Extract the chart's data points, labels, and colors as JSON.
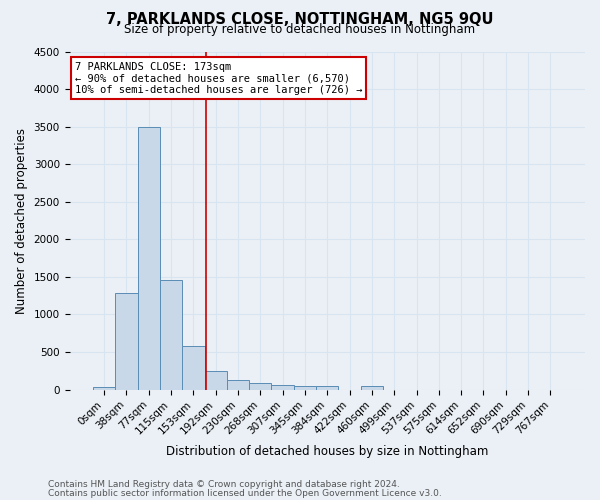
{
  "title": "7, PARKLANDS CLOSE, NOTTINGHAM, NG5 9QU",
  "subtitle": "Size of property relative to detached houses in Nottingham",
  "xlabel": "Distribution of detached houses by size in Nottingham",
  "ylabel": "Number of detached properties",
  "footnote1": "Contains HM Land Registry data © Crown copyright and database right 2024.",
  "footnote2": "Contains public sector information licensed under the Open Government Licence v3.0.",
  "bar_labels": [
    "0sqm",
    "38sqm",
    "77sqm",
    "115sqm",
    "153sqm",
    "192sqm",
    "230sqm",
    "268sqm",
    "307sqm",
    "345sqm",
    "384sqm",
    "422sqm",
    "460sqm",
    "499sqm",
    "537sqm",
    "575sqm",
    "614sqm",
    "652sqm",
    "690sqm",
    "729sqm",
    "767sqm"
  ],
  "bar_values": [
    40,
    1280,
    3500,
    1460,
    580,
    250,
    130,
    90,
    55,
    45,
    45,
    0,
    50,
    0,
    0,
    0,
    0,
    0,
    0,
    0,
    0
  ],
  "bar_color": "#c8d8e8",
  "bar_edge_color": "#5a8db5",
  "annotation_text1": "7 PARKLANDS CLOSE: 173sqm",
  "annotation_text2": "← 90% of detached houses are smaller (6,570)",
  "annotation_text3": "10% of semi-detached houses are larger (726) →",
  "vline_x_index": 4.55,
  "vline_color": "#cc0000",
  "bg_color": "#eaf0f6",
  "ylim": [
    0,
    4500
  ],
  "yticks": [
    0,
    500,
    1000,
    1500,
    2000,
    2500,
    3000,
    3500,
    4000,
    4500
  ],
  "grid_color": "#d8e4ef",
  "title_fontsize": 10.5,
  "subtitle_fontsize": 8.5,
  "ylabel_fontsize": 8.5,
  "xlabel_fontsize": 8.5,
  "tick_fontsize": 7.5,
  "ann_fontsize": 7.5,
  "footnote_fontsize": 6.5
}
